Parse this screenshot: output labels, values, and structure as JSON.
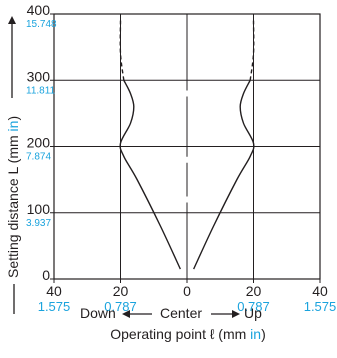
{
  "chart_data": {
    "type": "line",
    "x_ticks": [
      {
        "mm": "40",
        "in": "1.575"
      },
      {
        "mm": "20",
        "in": "0.787"
      },
      {
        "mm": "0",
        "in": ""
      },
      {
        "mm": "20",
        "in": "0.787"
      },
      {
        "mm": "40",
        "in": "1.575"
      }
    ],
    "y_ticks": [
      {
        "mm": "0",
        "in": ""
      },
      {
        "mm": "100",
        "in": "3.937"
      },
      {
        "mm": "200",
        "in": "7.874"
      },
      {
        "mm": "300",
        "in": "11.811"
      },
      {
        "mm": "400",
        "in": "15.748"
      }
    ],
    "ylabel_prefix": "Setting distance L (mm ",
    "ylabel_unit": "in",
    "ylabel_suffix": ")",
    "xlabel_prefix": "Operating point ℓ (mm ",
    "xlabel_unit": "in",
    "xlabel_suffix": ")",
    "direction_labels": {
      "left": "Down",
      "center": "Center",
      "right": "Up"
    },
    "xlim": [
      -40,
      40
    ],
    "ylim": [
      0,
      400
    ],
    "grid": true,
    "series": [
      {
        "side": "left",
        "solid": [
          [
            -2,
            15
          ],
          [
            -8,
            80
          ],
          [
            -15,
            150
          ],
          [
            -19,
            185
          ],
          [
            -20,
            205
          ],
          [
            -17,
            235
          ],
          [
            -16,
            260
          ],
          [
            -17,
            280
          ],
          [
            -19,
            300
          ]
        ],
        "dashed": [
          [
            -19,
            300
          ],
          [
            -20,
            340
          ],
          [
            -20,
            390
          ]
        ]
      },
      {
        "side": "right",
        "solid": [
          [
            2,
            15
          ],
          [
            8,
            80
          ],
          [
            15,
            150
          ],
          [
            19,
            185
          ],
          [
            20,
            205
          ],
          [
            17,
            235
          ],
          [
            16,
            260
          ],
          [
            17,
            280
          ],
          [
            19,
            300
          ]
        ],
        "dashed": [
          [
            19,
            300
          ],
          [
            20,
            340
          ],
          [
            20,
            390
          ]
        ]
      }
    ],
    "center_marks": [
      [
        0,
        120
      ],
      [
        0,
        180
      ],
      [
        0,
        280
      ]
    ]
  }
}
